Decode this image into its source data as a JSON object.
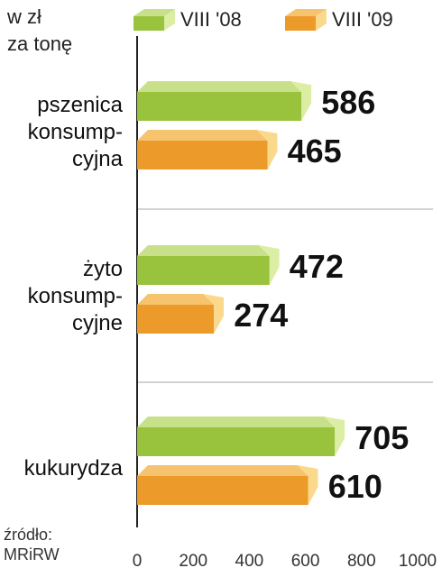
{
  "unit_label": [
    "w zł",
    "za tonę"
  ],
  "source": [
    "źródło:",
    "MRiRW"
  ],
  "colors": {
    "series1_front": "#99c23d",
    "series1_top": "#c9e08a",
    "series1_side": "#dceea4",
    "series2_front": "#ec9a2a",
    "series2_top": "#f6c46e",
    "series2_side": "#fbd98c",
    "grid": "#b8b8b8",
    "axis": "#222222"
  },
  "chart_data": {
    "type": "bar",
    "orientation": "horizontal",
    "categories": [
      [
        "pszenica",
        "konsump-",
        "cyjna"
      ],
      [
        "żyto",
        "konsump-",
        "cyjne"
      ],
      [
        "kukurydza"
      ]
    ],
    "series": [
      {
        "name": "VIII '08",
        "values": [
          586,
          472,
          705
        ]
      },
      {
        "name": "VIII '09",
        "values": [
          465,
          274,
          610
        ]
      }
    ],
    "xlim": [
      0,
      1000
    ],
    "xticks": [
      0,
      200,
      400,
      600,
      800,
      1000
    ],
    "legend": "top"
  }
}
